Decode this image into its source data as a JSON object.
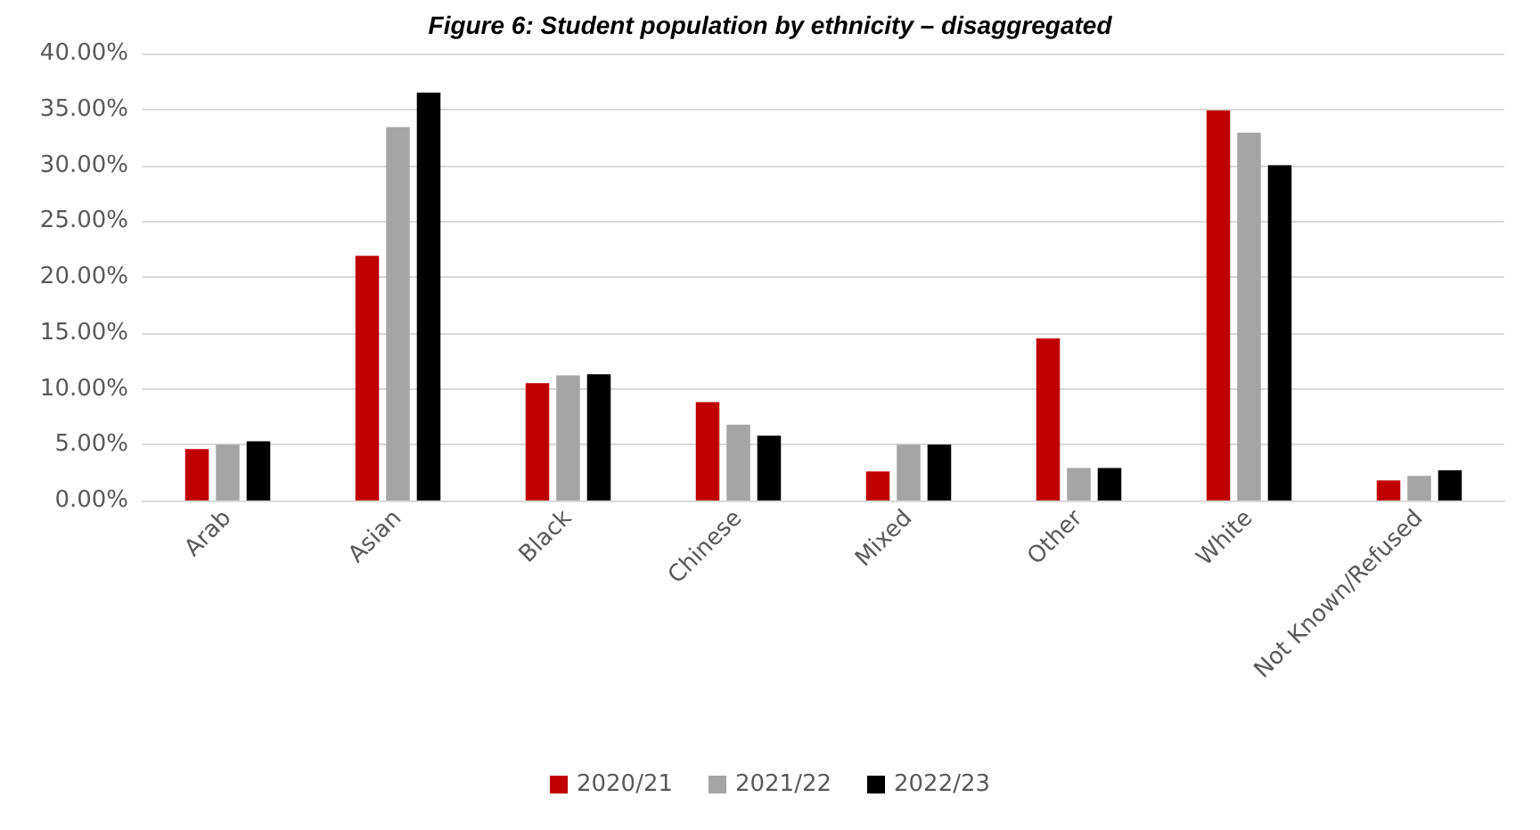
{
  "chart_data": {
    "type": "bar",
    "title": "Figure 6: Student population by ethnicity – disaggregated",
    "categories": [
      "Arab",
      "Asian",
      "Black",
      "Chinese",
      "Mixed",
      "Other",
      "White",
      "Not Known/Refused"
    ],
    "series": [
      {
        "name": "2020/21",
        "color": "#c00000",
        "values": [
          4.6,
          21.9,
          10.5,
          8.8,
          2.6,
          14.5,
          34.9,
          1.8
        ]
      },
      {
        "name": "2021/22",
        "color": "#a5a5a5",
        "values": [
          5.0,
          33.4,
          11.2,
          6.8,
          5.0,
          2.9,
          32.9,
          2.2
        ]
      },
      {
        "name": "2022/23",
        "color": "#000000",
        "values": [
          5.3,
          36.5,
          11.3,
          5.8,
          5.0,
          2.9,
          30.0,
          2.7
        ]
      }
    ],
    "ylim": [
      0,
      40
    ],
    "yticks": [
      {
        "value": 0,
        "label": "0.00%"
      },
      {
        "value": 5,
        "label": "5.00%"
      },
      {
        "value": 10,
        "label": "10.00%"
      },
      {
        "value": 15,
        "label": "15.00%"
      },
      {
        "value": 20,
        "label": "20.00%"
      },
      {
        "value": 25,
        "label": "25.00%"
      },
      {
        "value": 30,
        "label": "30.00%"
      },
      {
        "value": 35,
        "label": "35.00%"
      },
      {
        "value": 40,
        "label": "40.00%"
      }
    ],
    "grid": "y",
    "legend": "bottom"
  }
}
